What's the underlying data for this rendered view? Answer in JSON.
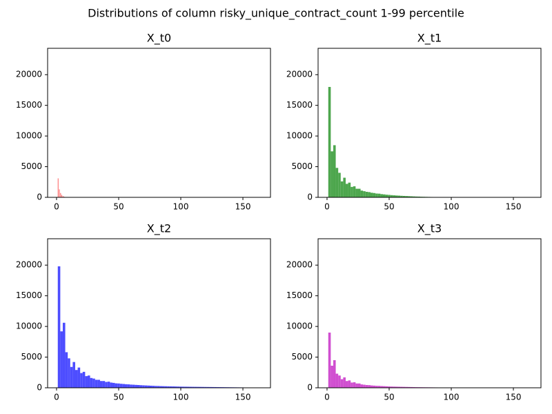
{
  "title": "Distributions of column risky_unique_contract_count 1-99 percentile",
  "chart_data": [
    {
      "type": "histogram",
      "title": "X_t0",
      "color": "#ff4d4d",
      "bins": [
        1,
        1.5,
        2,
        2.5,
        3,
        3.5,
        4,
        4.5,
        5,
        5.5,
        6,
        6.5,
        7,
        7.5
      ],
      "values": [
        3100,
        0,
        1300,
        0,
        700,
        0,
        400,
        0,
        200,
        0,
        100,
        0,
        50
      ],
      "xlim": [
        -7.2,
        172.2
      ],
      "ylim": [
        0,
        24300
      ],
      "xticks": [
        0,
        50,
        100,
        150
      ],
      "yticks": [
        0,
        5000,
        10000,
        15000,
        20000
      ]
    },
    {
      "type": "histogram",
      "title": "X_t1",
      "color": "#4da64d",
      "bins": [
        1,
        3,
        5,
        7,
        9,
        11,
        13,
        15,
        17,
        19,
        21,
        23,
        25,
        27,
        29,
        31,
        33,
        35,
        37,
        39,
        41,
        43,
        45,
        47,
        49,
        51,
        53,
        55,
        57,
        59,
        61,
        63,
        65,
        67,
        69,
        71,
        73,
        75,
        77,
        79,
        81,
        83,
        85,
        87,
        89,
        91,
        93,
        95,
        97,
        99,
        101,
        103,
        105,
        107,
        109,
        111,
        113,
        115,
        117,
        119,
        121,
        123,
        125,
        127,
        129,
        131,
        133,
        135,
        137,
        139,
        141,
        143,
        145,
        147,
        149,
        151,
        153,
        155,
        157,
        159,
        161,
        163,
        165
      ],
      "values": [
        18000,
        7500,
        8500,
        4800,
        4000,
        2600,
        3200,
        2200,
        2400,
        1700,
        1800,
        1400,
        1400,
        1100,
        1000,
        900,
        850,
        750,
        700,
        620,
        600,
        520,
        480,
        430,
        400,
        360,
        330,
        300,
        280,
        250,
        230,
        210,
        190,
        170,
        150,
        130,
        120,
        100,
        90,
        80,
        70,
        60,
        50,
        45,
        40,
        35,
        30,
        25,
        20,
        18,
        15,
        12,
        10,
        8,
        6,
        5,
        4,
        3,
        0,
        0,
        0,
        0,
        0,
        0,
        0,
        0,
        0,
        0,
        0,
        0,
        0,
        0,
        0,
        0,
        0,
        0,
        0,
        0,
        0,
        0,
        0,
        0
      ],
      "xlim": [
        -7.2,
        172.2
      ],
      "ylim": [
        0,
        24300
      ],
      "xticks": [
        0,
        50,
        100,
        150
      ],
      "yticks": [
        0,
        5000,
        10000,
        15000,
        20000
      ]
    },
    {
      "type": "histogram",
      "title": "X_t2",
      "color": "#4d4dff",
      "bins": [
        1,
        3,
        5,
        7,
        9,
        11,
        13,
        15,
        17,
        19,
        21,
        23,
        25,
        27,
        29,
        31,
        33,
        35,
        37,
        39,
        41,
        43,
        45,
        47,
        49,
        51,
        53,
        55,
        57,
        59,
        61,
        63,
        65,
        67,
        69,
        71,
        73,
        75,
        77,
        79,
        81,
        83,
        85,
        87,
        89,
        91,
        93,
        95,
        97,
        99,
        101,
        103,
        105,
        107,
        109,
        111,
        113,
        115,
        117,
        119,
        121,
        123,
        125,
        127,
        129,
        131,
        133,
        135,
        137,
        139,
        141,
        143,
        145,
        147,
        149,
        151,
        153,
        155,
        157,
        159,
        161,
        163,
        165
      ],
      "values": [
        19800,
        9200,
        10600,
        5800,
        4800,
        3400,
        4200,
        2900,
        3300,
        2400,
        2600,
        1900,
        2000,
        1600,
        1500,
        1300,
        1300,
        1100,
        1100,
        950,
        1000,
        850,
        800,
        720,
        700,
        650,
        620,
        580,
        560,
        520,
        500,
        470,
        450,
        420,
        400,
        380,
        360,
        340,
        320,
        300,
        290,
        270,
        260,
        250,
        240,
        230,
        220,
        210,
        200,
        190,
        180,
        175,
        170,
        165,
        160,
        155,
        150,
        145,
        140,
        135,
        130,
        125,
        120,
        115,
        110,
        105,
        100,
        95,
        90,
        85,
        80,
        75,
        70,
        65,
        60,
        55,
        50,
        45,
        40,
        35,
        35,
        30
      ],
      "xlim": [
        -7.2,
        172.2
      ],
      "ylim": [
        0,
        24300
      ],
      "xticks": [
        0,
        50,
        100,
        150
      ],
      "yticks": [
        0,
        5000,
        10000,
        15000,
        20000
      ]
    },
    {
      "type": "histogram",
      "title": "X_t3",
      "color": "#d04fd0",
      "bins": [
        1,
        3,
        5,
        7,
        9,
        11,
        13,
        15,
        17,
        19,
        21,
        23,
        25,
        27,
        29,
        31,
        33,
        35,
        37,
        39,
        41,
        43,
        45,
        47,
        49,
        51,
        53,
        55,
        57,
        59,
        61,
        63,
        65,
        67,
        69,
        71,
        73,
        75,
        77,
        79,
        81,
        83,
        85,
        87,
        89,
        91,
        93,
        95,
        97,
        99,
        101,
        103,
        105,
        107,
        109,
        111,
        113,
        115,
        117,
        119,
        121,
        123,
        125,
        127,
        129,
        131,
        133,
        135,
        137,
        139,
        141,
        143,
        145,
        147,
        149,
        151,
        153,
        155,
        157,
        159,
        161,
        163,
        165
      ],
      "values": [
        9000,
        3600,
        4500,
        2300,
        2000,
        1400,
        1700,
        1100,
        1200,
        850,
        900,
        700,
        700,
        550,
        500,
        450,
        430,
        380,
        350,
        320,
        310,
        280,
        260,
        240,
        220,
        200,
        190,
        180,
        170,
        160,
        150,
        140,
        130,
        120,
        110,
        100,
        95,
        90,
        85,
        80,
        75,
        70,
        65,
        60,
        55,
        50,
        48,
        46,
        44,
        42,
        40,
        38,
        36,
        34,
        32,
        30,
        28,
        26,
        24,
        22,
        20,
        18,
        16,
        14,
        12,
        10,
        9,
        8,
        7,
        6,
        5,
        5,
        4,
        4,
        3,
        3,
        2,
        2,
        1,
        1,
        1,
        1
      ],
      "xlim": [
        -7.2,
        172.2
      ],
      "ylim": [
        0,
        24300
      ],
      "xticks": [
        0,
        50,
        100,
        150
      ],
      "yticks": [
        0,
        5000,
        10000,
        15000,
        20000
      ]
    }
  ]
}
